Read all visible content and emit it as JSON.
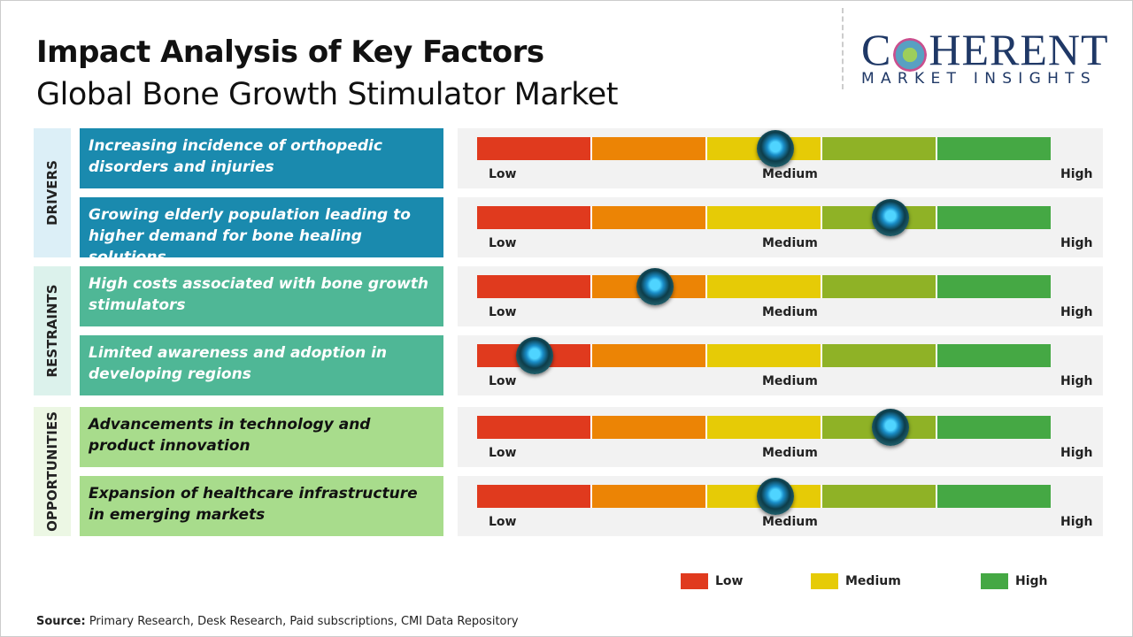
{
  "title": "Impact Analysis of Key Factors",
  "subtitle": "Global Bone Growth Stimulator Market",
  "logo": {
    "name": "COHERENT",
    "tagline": "MARKET INSIGHTS"
  },
  "scale": {
    "low": "Low",
    "medium": "Medium",
    "high": "High",
    "colors": [
      "#e03a1e",
      "#ec8405",
      "#e6cb06",
      "#8fb226",
      "#45a844"
    ]
  },
  "categories": [
    {
      "label": "DRIVERS",
      "bg": "#dceff7",
      "box": "#1a8aae",
      "text": "#ffffff",
      "items": [
        {
          "text": "Increasing incidence of orthopedic disorders and injuries",
          "impact": 0.52
        },
        {
          "text": "Growing elderly population leading to higher demand for bone healing solutions",
          "impact": 0.72
        }
      ]
    },
    {
      "label": "RESTRAINTS",
      "bg": "#dcf2ec",
      "box": "#4fb796",
      "text": "#ffffff",
      "items": [
        {
          "text": "High costs associated with bone growth stimulators",
          "impact": 0.31
        },
        {
          "text": "Limited awareness and adoption in developing regions",
          "impact": 0.1
        }
      ]
    },
    {
      "label": "OPPORTUNITIES",
      "bg": "#ecf7e4",
      "box": "#a8dc8c",
      "text": "#111111",
      "items": [
        {
          "text": "Advancements in technology and product innovation",
          "impact": 0.72
        },
        {
          "text": "Expansion of healthcare infrastructure in emerging markets",
          "impact": 0.52
        }
      ]
    }
  ],
  "legend": [
    {
      "label": "Low",
      "color": "#e03a1e"
    },
    {
      "label": "Medium",
      "color": "#e6cb06"
    },
    {
      "label": "High",
      "color": "#45a844"
    }
  ],
  "source": {
    "label": "Source:",
    "text": " Primary Research, Desk Research, Paid subscriptions, CMI Data Repository"
  }
}
